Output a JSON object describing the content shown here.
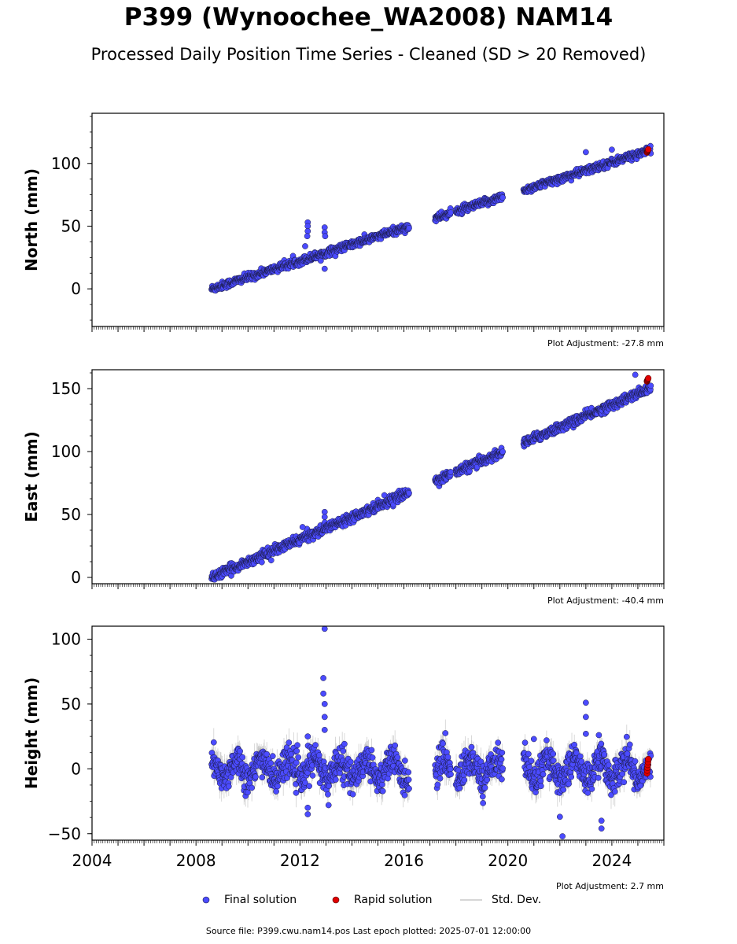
{
  "title": "P399 (Wynoochee_WA2008) NAM14",
  "subtitle": "Processed Daily Position Time Series - Cleaned (SD > 20 Removed)",
  "source_line": "Source file: P399.cwu.nam14.pos  Last epoch plotted: 2025-07-01 12:00:00",
  "colors": {
    "final": "#4b4bff",
    "final_edge": "#1a1a40",
    "rapid": "#e00000",
    "stddev": "#b0b0b0"
  },
  "legend": {
    "final": "Final solution",
    "rapid": "Rapid solution",
    "stddev": "Std. Dev."
  },
  "chart_data": [
    {
      "type": "scatter",
      "component": "north",
      "ylabel": "North (mm)",
      "adjustment": "Plot Adjustment: -27.8 mm",
      "xlim": [
        2004,
        2026
      ],
      "ylim": [
        -30,
        140
      ],
      "yticks": [
        0,
        50,
        100
      ],
      "ytick_labels": [
        "0",
        "50",
        "100"
      ],
      "segments": [
        [
          2008.6,
          2016.2
        ],
        [
          2017.2,
          2017.8
        ],
        [
          2018.0,
          2019.8
        ],
        [
          2020.6,
          2025.5
        ]
      ],
      "trend": {
        "t0": 2008.6,
        "y0": 0,
        "slope": 6.55
      },
      "offsets": [
        {
          "from": 2017.0,
          "delta": 0
        }
      ],
      "noise": 1.5,
      "outliers": [
        {
          "x": 2012.3,
          "y": 53
        },
        {
          "x": 2012.3,
          "y": 50
        },
        {
          "x": 2012.3,
          "y": 46
        },
        {
          "x": 2012.28,
          "y": 42
        },
        {
          "x": 2012.2,
          "y": 34
        },
        {
          "x": 2012.95,
          "y": 49
        },
        {
          "x": 2012.95,
          "y": 45
        },
        {
          "x": 2012.97,
          "y": 42
        },
        {
          "x": 2012.95,
          "y": 16
        },
        {
          "x": 2023.0,
          "y": 109
        },
        {
          "x": 2024.0,
          "y": 111
        }
      ],
      "rapid": {
        "x": 2025.35,
        "y": 110
      }
    },
    {
      "type": "scatter",
      "component": "east",
      "ylabel": "East (mm)",
      "adjustment": "Plot Adjustment: -40.4 mm",
      "xlim": [
        2004,
        2026
      ],
      "ylim": [
        -5,
        165
      ],
      "yticks": [
        0,
        50,
        100,
        150
      ],
      "ytick_labels": [
        "0",
        "50",
        "100",
        "150"
      ],
      "segments": [
        [
          2008.6,
          2016.2
        ],
        [
          2017.2,
          2017.8
        ],
        [
          2018.0,
          2019.8
        ],
        [
          2020.6,
          2025.5
        ]
      ],
      "trend": {
        "t0": 2008.6,
        "y0": 0,
        "slope": 8.9
      },
      "offsets": [],
      "noise": 1.8,
      "outliers": [
        {
          "x": 2012.1,
          "y": 40
        },
        {
          "x": 2012.95,
          "y": 52
        },
        {
          "x": 2012.95,
          "y": 48
        },
        {
          "x": 2024.9,
          "y": 161
        }
      ],
      "rapid": {
        "x": 2025.35,
        "y": 157
      }
    },
    {
      "type": "scatter",
      "component": "height",
      "ylabel": "Height (mm)",
      "adjustment": "Plot Adjustment: 2.7 mm",
      "xlim": [
        2004,
        2026
      ],
      "ylim": [
        -55,
        110
      ],
      "yticks": [
        -50,
        0,
        50,
        100
      ],
      "ytick_labels": [
        "−50",
        "0",
        "50",
        "100"
      ],
      "xticks": [
        2004,
        2008,
        2012,
        2016,
        2020,
        2024
      ],
      "xtick_labels": [
        "2004",
        "2008",
        "2012",
        "2016",
        "2020",
        "2024"
      ],
      "segments": [
        [
          2008.6,
          2016.2
        ],
        [
          2017.2,
          2017.8
        ],
        [
          2018.0,
          2019.8
        ],
        [
          2020.6,
          2025.5
        ]
      ],
      "trend": {
        "t0": 2008.6,
        "y0": 0,
        "slope": 0
      },
      "seasonal": 8,
      "noise": 6,
      "outliers": [
        {
          "x": 2012.95,
          "y": 108
        },
        {
          "x": 2012.9,
          "y": 70
        },
        {
          "x": 2012.9,
          "y": 58
        },
        {
          "x": 2012.95,
          "y": 50
        },
        {
          "x": 2012.95,
          "y": 40
        },
        {
          "x": 2012.95,
          "y": 30
        },
        {
          "x": 2012.3,
          "y": 25
        },
        {
          "x": 2012.3,
          "y": -30
        },
        {
          "x": 2012.3,
          "y": -35
        },
        {
          "x": 2013.1,
          "y": -28
        },
        {
          "x": 2022.1,
          "y": -52
        },
        {
          "x": 2022.0,
          "y": -37
        },
        {
          "x": 2023.0,
          "y": 51
        },
        {
          "x": 2023.0,
          "y": 40
        },
        {
          "x": 2023.0,
          "y": 27
        },
        {
          "x": 2023.6,
          "y": -40
        },
        {
          "x": 2023.6,
          "y": -46
        },
        {
          "x": 2021.0,
          "y": 23
        },
        {
          "x": 2023.5,
          "y": 26
        },
        {
          "x": 2025.1,
          "y": -13
        }
      ],
      "rapid": {
        "x": 2025.35,
        "y": 2
      }
    }
  ]
}
